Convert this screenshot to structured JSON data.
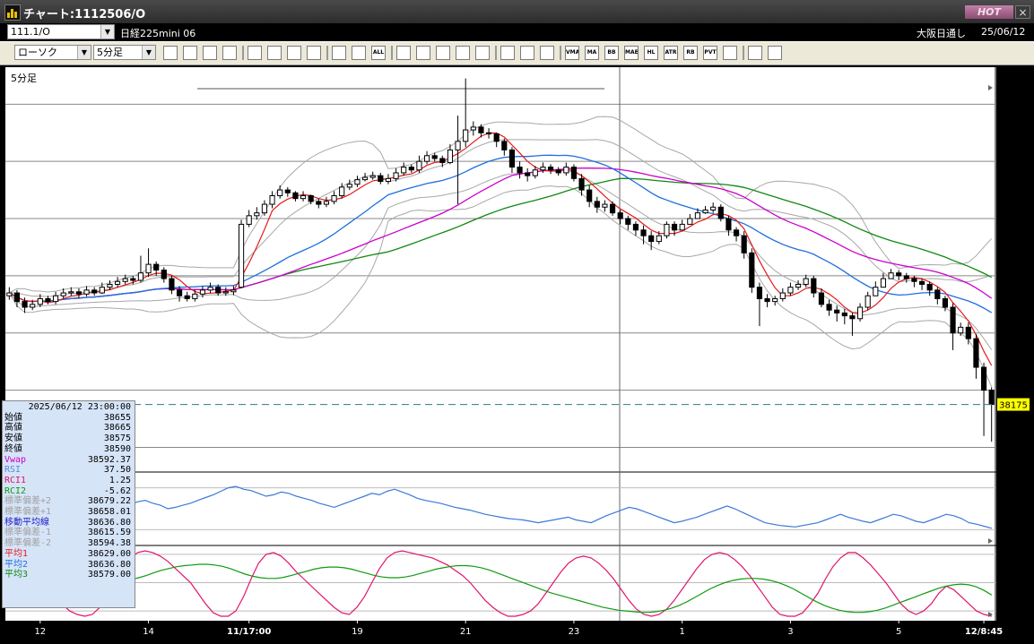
{
  "window": {
    "title": "チャート:1112506/O",
    "hot_label": "HOT",
    "close_label": "×"
  },
  "header": {
    "symbol_code": "111.1/O",
    "symbol_name": "日経225mini 06",
    "exchange": "大阪日通し",
    "date": "25/06/12",
    "chart_type": "ローソク",
    "interval": "5分足"
  },
  "toolbar": {
    "buttons": [
      "zoom",
      "fit",
      "draw",
      "line",
      "pointer",
      "undo",
      "memo",
      "delete",
      "candle",
      "bar",
      "ALL",
      "tool1",
      "tool2",
      "tool3",
      "tool4",
      "tool5",
      "settings",
      "edit",
      "color",
      "VMA",
      "MA",
      "BB",
      "MAE",
      "HL",
      "ATR",
      "RB",
      "PVT",
      "box",
      "Log",
      "export"
    ]
  },
  "colors": {
    "candle": "#000000",
    "ma_red": "#e41a1a",
    "ma_blue": "#1f6fe0",
    "ma_green": "#118811",
    "ma_magenta": "#cc00cc",
    "band_gray": "#a8a8a8",
    "rsi": "#3a7ad8",
    "rci1": "#e0146c",
    "rci2": "#119a11",
    "current_price_line": "#2a7a8a",
    "current_price_badge": "#ffff00"
  },
  "chart_data": [
    {
      "type": "candlestick",
      "panel": "price",
      "title": "5分足",
      "y_ticks": [
        38100,
        38200,
        38300,
        38400,
        38500,
        38600,
        38700
      ],
      "ylim": [
        38060,
        38760
      ],
      "current_price": 38175,
      "x_tick_labels": [
        "12",
        "14",
        "11/17:00",
        "19",
        "21",
        "23",
        "1",
        "3",
        "5",
        "12/8:45"
      ],
      "x_tick_index": [
        4,
        18,
        31,
        45,
        59,
        73,
        87,
        101,
        115,
        126
      ],
      "close": [
        38370,
        38355,
        38345,
        38350,
        38360,
        38355,
        38365,
        38370,
        38372,
        38368,
        38375,
        38370,
        38380,
        38385,
        38390,
        38395,
        38392,
        38405,
        38420,
        38410,
        38395,
        38375,
        38365,
        38360,
        38368,
        38375,
        38380,
        38370,
        38372,
        38375,
        38490,
        38505,
        38510,
        38525,
        38540,
        38550,
        38545,
        38535,
        38540,
        38530,
        38525,
        38530,
        38540,
        38555,
        38560,
        38568,
        38572,
        38575,
        38565,
        38570,
        38580,
        38590,
        38585,
        38600,
        38610,
        38605,
        38598,
        38620,
        38635,
        38655,
        38660,
        38650,
        38648,
        38635,
        38620,
        38590,
        38580,
        38575,
        38585,
        38590,
        38585,
        38580,
        38590,
        38570,
        38550,
        38530,
        38520,
        38525,
        38510,
        38500,
        38490,
        38480,
        38470,
        38460,
        38470,
        38490,
        38480,
        38490,
        38500,
        38510,
        38515,
        38520,
        38500,
        38480,
        38470,
        38440,
        38380,
        38360,
        38355,
        38360,
        38370,
        38380,
        38385,
        38395,
        38370,
        38350,
        38340,
        38335,
        38330,
        38325,
        38345,
        38365,
        38380,
        38395,
        38405,
        38400,
        38395,
        38390,
        38385,
        38375,
        38360,
        38345,
        38300,
        38310,
        38290,
        38240,
        38200,
        38175
      ],
      "open": [
        38365,
        38370,
        38355,
        38345,
        38350,
        38360,
        38355,
        38365,
        38370,
        38372,
        38368,
        38375,
        38370,
        38380,
        38385,
        38390,
        38395,
        38392,
        38405,
        38420,
        38410,
        38395,
        38375,
        38365,
        38360,
        38368,
        38375,
        38380,
        38370,
        38372,
        38380,
        38490,
        38505,
        38510,
        38525,
        38540,
        38550,
        38545,
        38535,
        38540,
        38530,
        38525,
        38530,
        38540,
        38555,
        38560,
        38568,
        38572,
        38575,
        38565,
        38570,
        38580,
        38590,
        38585,
        38600,
        38610,
        38605,
        38598,
        38620,
        38635,
        38655,
        38660,
        38650,
        38648,
        38635,
        38620,
        38590,
        38580,
        38575,
        38585,
        38590,
        38585,
        38580,
        38590,
        38570,
        38550,
        38530,
        38520,
        38525,
        38510,
        38500,
        38490,
        38480,
        38470,
        38460,
        38470,
        38490,
        38480,
        38490,
        38500,
        38510,
        38515,
        38520,
        38500,
        38480,
        38470,
        38440,
        38380,
        38360,
        38355,
        38360,
        38370,
        38380,
        38385,
        38395,
        38370,
        38350,
        38340,
        38335,
        38330,
        38325,
        38345,
        38365,
        38380,
        38395,
        38405,
        38400,
        38395,
        38390,
        38385,
        38375,
        38360,
        38345,
        38300,
        38310,
        38290,
        38240,
        38200
      ],
      "high": [
        38380,
        38375,
        38362,
        38358,
        38368,
        38365,
        38372,
        38378,
        38380,
        38378,
        38382,
        38380,
        38388,
        38392,
        38398,
        38402,
        38400,
        38435,
        38448,
        38425,
        38415,
        38400,
        38382,
        38372,
        38375,
        38382,
        38388,
        38385,
        38380,
        38382,
        38498,
        38515,
        38520,
        38532,
        38548,
        38558,
        38555,
        38548,
        38548,
        38542,
        38535,
        38538,
        38548,
        38562,
        38568,
        38575,
        38580,
        38582,
        38580,
        38578,
        38588,
        38598,
        38595,
        38610,
        38618,
        38615,
        38610,
        38630,
        38680,
        38745,
        38670,
        38665,
        38658,
        38650,
        38640,
        38625,
        38600,
        38588,
        38592,
        38598,
        38595,
        38590,
        38598,
        38595,
        38578,
        38558,
        38538,
        38532,
        38530,
        38515,
        38505,
        38495,
        38488,
        38478,
        38478,
        38495,
        38495,
        38498,
        38508,
        38518,
        38522,
        38528,
        38525,
        38505,
        38485,
        38478,
        38448,
        38388,
        38368,
        38365,
        38378,
        38388,
        38392,
        38402,
        38400,
        38378,
        38358,
        38348,
        38342,
        38335,
        38352,
        38372,
        38390,
        38405,
        38412,
        38410,
        38405,
        38400,
        38395,
        38390,
        38380,
        38365,
        38352,
        38318,
        38318,
        38298,
        38248,
        38205
      ],
      "low": [
        38358,
        38345,
        38335,
        38340,
        38345,
        38350,
        38350,
        38360,
        38365,
        38360,
        38364,
        38365,
        38368,
        38375,
        38380,
        38385,
        38385,
        38388,
        38398,
        38400,
        38388,
        38368,
        38355,
        38355,
        38355,
        38362,
        38370,
        38365,
        38365,
        38366,
        38378,
        38485,
        38498,
        38505,
        38518,
        38535,
        38538,
        38530,
        38530,
        38525,
        38518,
        38520,
        38525,
        38535,
        38550,
        38555,
        38565,
        38568,
        38560,
        38560,
        38565,
        38575,
        38580,
        38580,
        38595,
        38600,
        38590,
        38595,
        38525,
        38625,
        38645,
        38642,
        38640,
        38625,
        38610,
        38580,
        38570,
        38565,
        38570,
        38580,
        38578,
        38575,
        38575,
        38565,
        38540,
        38520,
        38510,
        38512,
        38505,
        38490,
        38480,
        38470,
        38455,
        38445,
        38455,
        38465,
        38470,
        38480,
        38490,
        38500,
        38508,
        38510,
        38495,
        38470,
        38460,
        38430,
        38370,
        38312,
        38345,
        38348,
        38355,
        38365,
        38375,
        38380,
        38362,
        38345,
        38330,
        38320,
        38315,
        38295,
        38320,
        38340,
        38365,
        38380,
        38395,
        38392,
        38388,
        38380,
        38375,
        38365,
        38350,
        38338,
        38270,
        38295,
        38280,
        38220,
        38120,
        38110
      ]
    },
    {
      "type": "line",
      "panel": "rsi",
      "y_ticks": [
        20,
        80
      ],
      "ylim": [
        0,
        100
      ],
      "series": [
        {
          "name": "RSI",
          "values": [
            52,
            48,
            55,
            50,
            45,
            48,
            44,
            42,
            46,
            50,
            47,
            52,
            55,
            50,
            48,
            52,
            56,
            60,
            62,
            58,
            55,
            50,
            52,
            55,
            58,
            62,
            66,
            70,
            75,
            80,
            82,
            78,
            76,
            72,
            68,
            70,
            74,
            72,
            68,
            65,
            62,
            58,
            55,
            52,
            56,
            60,
            64,
            68,
            72,
            70,
            75,
            78,
            74,
            70,
            65,
            62,
            60,
            58,
            55,
            52,
            50,
            48,
            45,
            42,
            40,
            38,
            36,
            35,
            34,
            32,
            30,
            32,
            34,
            36,
            38,
            34,
            32,
            30,
            35,
            40,
            44,
            48,
            52,
            50,
            46,
            42,
            38,
            34,
            30,
            32,
            35,
            38,
            42,
            46,
            50,
            54,
            50,
            45,
            40,
            35,
            30,
            28,
            26,
            25,
            24,
            26,
            28,
            30,
            34,
            38,
            42,
            38,
            35,
            32,
            30,
            34,
            38,
            42,
            40,
            36,
            32,
            30,
            34,
            38,
            42,
            40,
            36,
            30,
            28,
            25,
            22
          ]
        }
      ]
    },
    {
      "type": "line",
      "panel": "rci",
      "y_ticks": [
        80,
        0,
        -80
      ],
      "ylim": [
        -100,
        100
      ],
      "series": [
        {
          "name": "RCI1",
          "values": [
            80,
            78,
            70,
            55,
            30,
            0,
            -30,
            -60,
            -80,
            -90,
            -95,
            -90,
            -70,
            -40,
            0,
            40,
            70,
            85,
            90,
            85,
            75,
            60,
            40,
            20,
            0,
            -30,
            -60,
            -85,
            -95,
            -95,
            -80,
            -40,
            10,
            55,
            80,
            85,
            75,
            55,
            30,
            10,
            -10,
            -30,
            -50,
            -70,
            -85,
            -90,
            -70,
            -40,
            0,
            40,
            70,
            85,
            90,
            85,
            80,
            75,
            70,
            60,
            50,
            35,
            20,
            0,
            -25,
            -50,
            -70,
            -85,
            -95,
            -95,
            -90,
            -80,
            -60,
            -30,
            0,
            30,
            55,
            70,
            75,
            70,
            55,
            35,
            10,
            -20,
            -50,
            -75,
            -90,
            -95,
            -90,
            -75,
            -50,
            -20,
            10,
            40,
            65,
            80,
            85,
            80,
            65,
            45,
            20,
            -10,
            -40,
            -70,
            -90,
            -95,
            -95,
            -85,
            -60,
            -30,
            10,
            45,
            70,
            85,
            85,
            70,
            50,
            25,
            0,
            -30,
            -60,
            -80,
            -90,
            -80,
            -60,
            -30,
            -10,
            -20,
            -40,
            -60,
            -80,
            -90,
            -95
          ]
        },
        {
          "name": "RCI2",
          "values": [
            80,
            78,
            76,
            74,
            70,
            65,
            58,
            50,
            42,
            34,
            25,
            18,
            12,
            8,
            5,
            5,
            8,
            14,
            20,
            28,
            35,
            40,
            45,
            48,
            50,
            52,
            52,
            50,
            46,
            40,
            32,
            24,
            18,
            14,
            12,
            12,
            15,
            20,
            26,
            32,
            38,
            42,
            44,
            44,
            42,
            38,
            32,
            26,
            20,
            16,
            14,
            14,
            16,
            20,
            26,
            32,
            38,
            42,
            46,
            48,
            48,
            46,
            42,
            36,
            28,
            20,
            12,
            4,
            -4,
            -12,
            -20,
            -28,
            -34,
            -40,
            -46,
            -52,
            -58,
            -64,
            -70,
            -74,
            -78,
            -80,
            -82,
            -84,
            -84,
            -82,
            -78,
            -72,
            -64,
            -54,
            -42,
            -30,
            -18,
            -8,
            0,
            6,
            10,
            12,
            12,
            10,
            6,
            0,
            -8,
            -18,
            -30,
            -42,
            -54,
            -64,
            -72,
            -78,
            -82,
            -84,
            -84,
            -82,
            -78,
            -72,
            -64,
            -56,
            -48,
            -40,
            -32,
            -24,
            -16,
            -10,
            -6,
            -4,
            -6,
            -12,
            -22,
            -35
          ]
        }
      ]
    }
  ],
  "indicators_legend": {
    "timestamp": "2025/06/12 23:00:00",
    "rows": [
      {
        "label": "始値",
        "value": "38655",
        "color": "#000000"
      },
      {
        "label": "高値",
        "value": "38665",
        "color": "#000000"
      },
      {
        "label": "安値",
        "value": "38575",
        "color": "#000000"
      },
      {
        "label": "終値",
        "value": "38590",
        "color": "#000000"
      },
      {
        "label": "Vwap",
        "value": "38592.37",
        "color": "#cc00cc"
      },
      {
        "label": "RSI",
        "value": "37.50",
        "color": "#5a8ad8"
      },
      {
        "label": "RCI1",
        "value": "1.25",
        "color": "#e0146c"
      },
      {
        "label": "RCI2",
        "value": "-5.62",
        "color": "#119a11"
      },
      {
        "label": "標準偏差+2",
        "value": "38679.22",
        "color": "#a0a0a0"
      },
      {
        "label": "標準偏差+1",
        "value": "38658.01",
        "color": "#a0a0a0"
      },
      {
        "label": "移動平均線",
        "value": "38636.80",
        "color": "#2020c0"
      },
      {
        "label": "標準偏差-1",
        "value": "38615.59",
        "color": "#a0a0a0"
      },
      {
        "label": "標準偏差-2",
        "value": "38594.38",
        "color": "#a0a0a0"
      },
      {
        "label": "平均1",
        "value": "38629.00",
        "color": "#e41a1a"
      },
      {
        "label": "平均2",
        "value": "38636.80",
        "color": "#1f6fe0"
      },
      {
        "label": "平均3",
        "value": "38579.00",
        "color": "#118811"
      }
    ]
  }
}
